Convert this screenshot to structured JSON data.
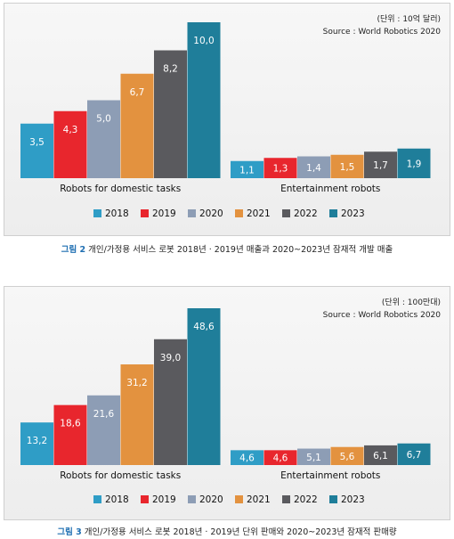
{
  "chart_data": [
    {
      "type": "bar",
      "unit_note": "(단위 : 10억 달러)",
      "source": "Source : World Robotics 2020",
      "categories": [
        "Robots for domestic tasks",
        "Entertainment robots"
      ],
      "series": [
        {
          "name": "2018",
          "values": [
            3.5,
            1.1
          ],
          "labels": [
            "3,5",
            "1,1"
          ]
        },
        {
          "name": "2019",
          "values": [
            4.3,
            1.3
          ],
          "labels": [
            "4,3",
            "1,3"
          ]
        },
        {
          "name": "2020",
          "values": [
            5.0,
            1.4
          ],
          "labels": [
            "5,0",
            "1,4"
          ]
        },
        {
          "name": "2021",
          "values": [
            6.7,
            1.5
          ],
          "labels": [
            "6,7",
            "1,5"
          ]
        },
        {
          "name": "2022",
          "values": [
            8.2,
            1.7
          ],
          "labels": [
            "8,2",
            "1,7"
          ]
        },
        {
          "name": "2023",
          "values": [
            10.0,
            1.9
          ],
          "labels": [
            "10,0",
            "1,9"
          ]
        }
      ],
      "ylim": [
        0,
        10
      ],
      "legend_position": "bottom",
      "grid": false,
      "caption_label": "그림 2",
      "caption_text": "개인/가정용 서비스 로봇 2018년 · 2019년 매출과 2020~2023년 잠재적 개발 매출"
    },
    {
      "type": "bar",
      "unit_note": "(단위 : 100만대)",
      "source": "Source : World Robotics 2020",
      "categories": [
        "Robots for domestic tasks",
        "Entertainment robots"
      ],
      "series": [
        {
          "name": "2018",
          "values": [
            13.2,
            4.6
          ],
          "labels": [
            "13,2",
            "4,6"
          ]
        },
        {
          "name": "2019",
          "values": [
            18.6,
            4.6
          ],
          "labels": [
            "18,6",
            "4,6"
          ]
        },
        {
          "name": "2020",
          "values": [
            21.6,
            5.1
          ],
          "labels": [
            "21,6",
            "5,1"
          ]
        },
        {
          "name": "2021",
          "values": [
            31.2,
            5.6
          ],
          "labels": [
            "31,2",
            "5,6"
          ]
        },
        {
          "name": "2022",
          "values": [
            39.0,
            6.1
          ],
          "labels": [
            "39,0",
            "6,1"
          ]
        },
        {
          "name": "2023",
          "values": [
            48.6,
            6.7
          ],
          "labels": [
            "48,6",
            "6,7"
          ]
        }
      ],
      "ylim": [
        0,
        48.6
      ],
      "legend_position": "bottom",
      "grid": false,
      "caption_label": "그림 3",
      "caption_text": "개인/가정용 서비스 로봇 2018년 · 2019년 단위 판매와 2020~2023년 잠재적 판매량"
    }
  ],
  "series_colors": [
    "#2f9dc6",
    "#e8262d",
    "#8d9db5",
    "#e3923f",
    "#5a5a5e",
    "#1f7e9a"
  ]
}
